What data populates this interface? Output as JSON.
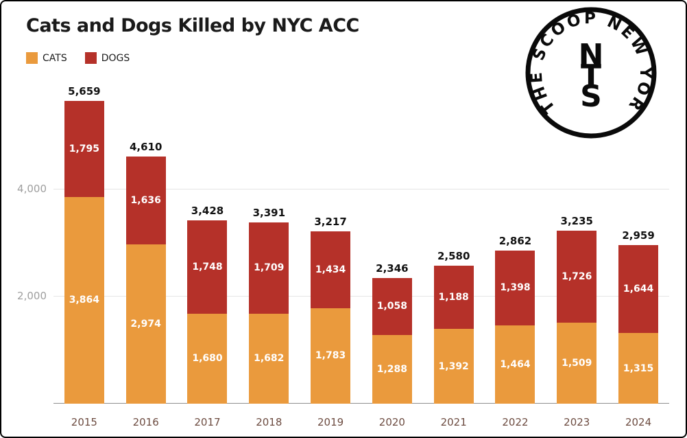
{
  "logo": {
    "arc_text": "THE SCOOP NEW YORK",
    "monogram": [
      "N",
      "T",
      "S"
    ]
  },
  "colors": {
    "cats": "#EA9A3D",
    "dogs": "#B53129",
    "grid": "#e5e5e5",
    "axis": "#8f8f8f",
    "y_tick": "#9e9e9e",
    "x_tick": "#6d4c41",
    "total_label": "#111111",
    "segment_label": "#ffffff"
  },
  "chart_data": {
    "type": "bar",
    "stacked": true,
    "title": "Cats and Dogs Killed by NYC ACC",
    "categories": [
      "2015",
      "2016",
      "2017",
      "2018",
      "2019",
      "2020",
      "2021",
      "2022",
      "2023",
      "2024"
    ],
    "series": [
      {
        "name": "CATS",
        "color": "#EA9A3D",
        "values": [
          3864,
          2974,
          1680,
          1682,
          1783,
          1288,
          1392,
          1464,
          1509,
          1315
        ]
      },
      {
        "name": "DOGS",
        "color": "#B53129",
        "values": [
          1795,
          1636,
          1748,
          1709,
          1434,
          1058,
          1188,
          1398,
          1726,
          1644
        ]
      }
    ],
    "totals": [
      5659,
      4610,
      3428,
      3391,
      3217,
      2346,
      2580,
      2862,
      3235,
      2959
    ],
    "yticks": [
      2000,
      4000
    ],
    "ylim": [
      0,
      6000
    ],
    "grid": "horizontal",
    "legend_position": "top-left",
    "value_labels": "inside-white, totals above bars"
  }
}
